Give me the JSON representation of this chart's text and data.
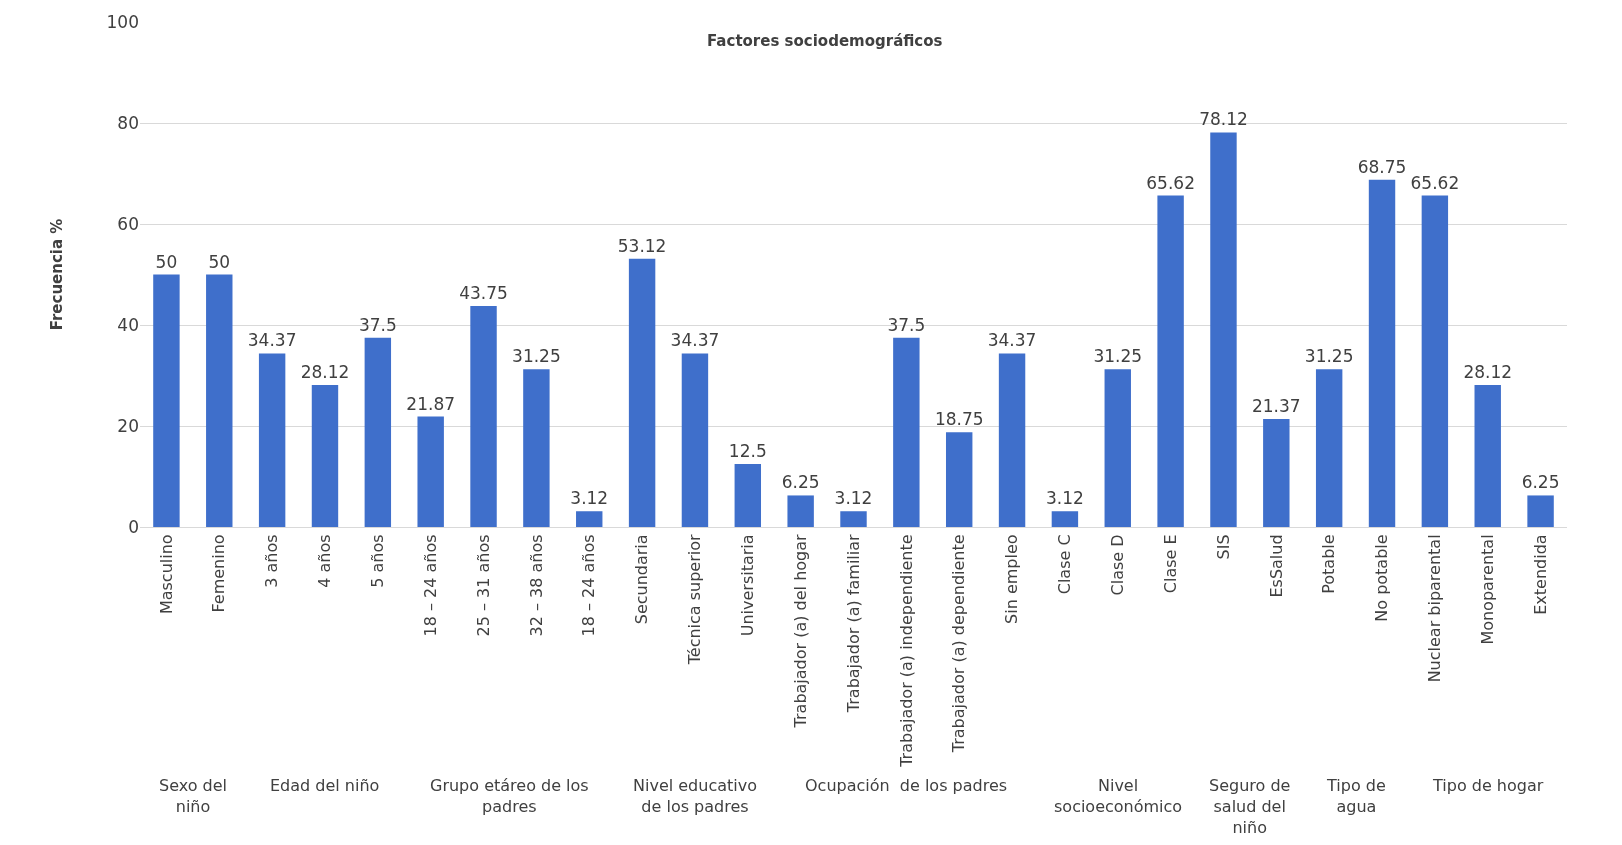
{
  "chart_data": {
    "type": "bar",
    "title": "Factores sociodemográficos",
    "ylabel": "Frecuencia %",
    "categories": [
      "Masculino",
      "Femenino",
      "3 años",
      "4 años",
      "5 años",
      "18 – 24 años",
      "25 – 31 años",
      "32 – 38 años",
      "18 – 24 años",
      "Secundaria",
      "Técnica superior",
      "Universitaria",
      "Trabajador (a) del hogar",
      "Trabajador (a) familiar",
      "Trabajador (a) independiente",
      "Trabajador (a) dependiente",
      "Sin empleo",
      "Clase C",
      "Clase D",
      "Clase E",
      "SIS",
      "EsSalud",
      "Potable",
      "No potable",
      "Nuclear biparental",
      "Monoparental",
      "Extendida"
    ],
    "values": [
      50,
      50,
      34.37,
      28.12,
      37.5,
      21.87,
      43.75,
      31.25,
      3.12,
      53.12,
      34.37,
      12.5,
      6.25,
      3.12,
      37.5,
      18.75,
      34.37,
      3.12,
      31.25,
      65.62,
      78.12,
      21.37,
      31.25,
      68.75,
      65.62,
      28.12,
      6.25
    ],
    "color": "#3f6fcb",
    "ylim": [
      0,
      100
    ],
    "yticks": [
      0,
      20,
      40,
      60,
      80,
      100
    ],
    "grid": "y",
    "data_labels": true,
    "legend": false,
    "annotations": [
      "Sexo del niño",
      "Edad del niño",
      "Grupo etáreo de los padres",
      "Nivel educativo de los padres",
      "Ocupación  de los padres",
      "Nivel socioeconómico",
      "Seguro de salud del niño",
      "Tipo de agua",
      "Tipo de hogar"
    ]
  }
}
